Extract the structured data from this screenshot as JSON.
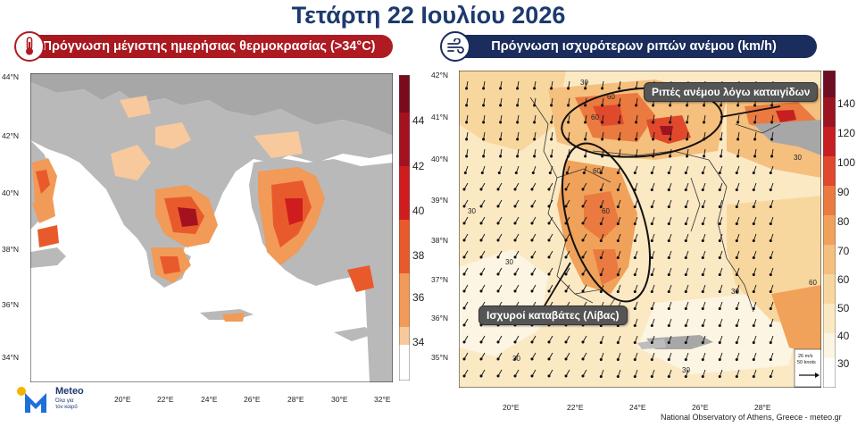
{
  "title": "Τετάρτη 22 Ιουλίου 2026",
  "left_panel": {
    "header": "Πρόγνωση μέγιστης ημερήσιας θερμοκρασίας (>34°C)",
    "icon": "thermometer-icon",
    "lat_labels": [
      "44°N",
      "42°N",
      "40°N",
      "38°N",
      "36°N",
      "34°N"
    ],
    "lon_labels": [
      "20°E",
      "22°E",
      "24°E",
      "26°E",
      "28°E",
      "30°E",
      "32°E"
    ],
    "colorbar_labels": [
      "44",
      "42",
      "40",
      "38",
      "36",
      "34"
    ],
    "colorbar_colors": [
      "#7a0b1c",
      "#a4111f",
      "#cf1d1f",
      "#e85a2b",
      "#f29a57",
      "#f7c99c",
      "#ffffff"
    ]
  },
  "right_panel": {
    "header": "Πρόγνωση ισχυρότερων ριπών ανέμου (km/h)",
    "icon": "wind-icon",
    "lat_labels": [
      "42°N",
      "41°N",
      "40°N",
      "39°N",
      "38°N",
      "37°N",
      "36°N",
      "35°N"
    ],
    "lon_labels": [
      "20°E",
      "22°E",
      "24°E",
      "26°E",
      "28°E"
    ],
    "colorbar_labels": [
      "140",
      "120",
      "100",
      "90",
      "80",
      "70",
      "60",
      "50",
      "40",
      "30"
    ],
    "colorbar_colors": [
      "#6e0d24",
      "#9b1420",
      "#c61e22",
      "#e0492c",
      "#ea7a3f",
      "#f1a25a",
      "#f5bf7d",
      "#f8d79f",
      "#fbe9c4",
      "#fdf5e3",
      "#ffffff"
    ],
    "callouts": {
      "north": "Ριπές ανέμου λόγω καταιγίδων",
      "south": "Ισχυροί καταβάτες (Λίβας)"
    },
    "legend_vector": [
      "26 m/s",
      "50 knots"
    ],
    "contour_labels": [
      "30",
      "60",
      "60",
      "30",
      "60",
      "60",
      "30",
      "30",
      "30",
      "60",
      "30",
      "30"
    ]
  },
  "credit": "National Observatory of Athens, Greece - meteo.gr",
  "logo": {
    "word": "Meteo",
    "sub1": "Όλα για",
    "sub2": "τον καιρό"
  }
}
